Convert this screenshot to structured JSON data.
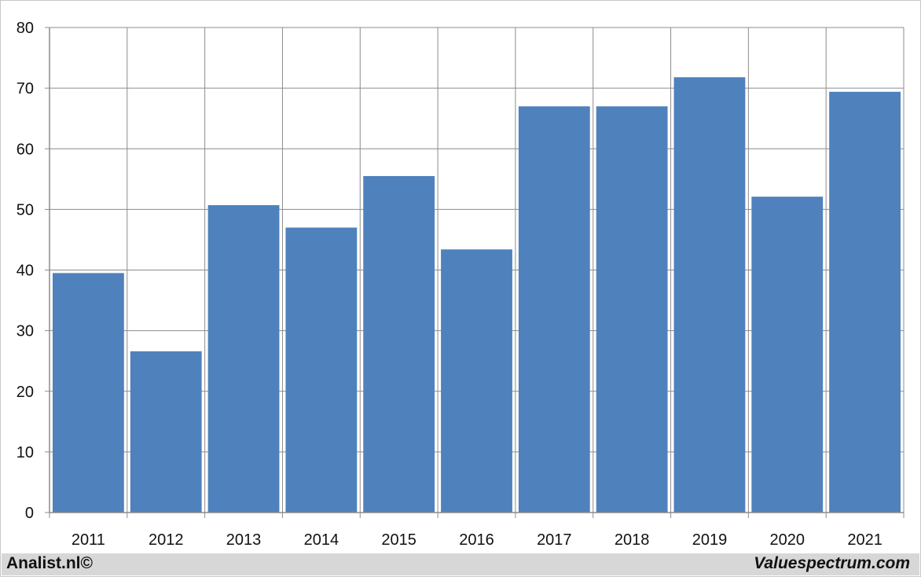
{
  "chart_data": {
    "type": "bar",
    "categories": [
      "2011",
      "2012",
      "2013",
      "2014",
      "2015",
      "2016",
      "2017",
      "2018",
      "2019",
      "2020",
      "2021"
    ],
    "values": [
      39.5,
      26.6,
      50.7,
      47.0,
      55.5,
      43.4,
      67.0,
      67.0,
      71.8,
      52.1,
      69.4
    ],
    "ylim": [
      0,
      80
    ],
    "yticks": [
      0,
      10,
      20,
      30,
      40,
      50,
      60,
      70,
      80
    ],
    "grid": true,
    "bar_color": "#4f81bd",
    "title": "",
    "xlabel": "",
    "ylabel": ""
  },
  "footer": {
    "left_text": "Analist.nl©",
    "right_text": "Valuespectrum.com"
  },
  "colors": {
    "footer_bg": "#d7d7d7",
    "grid": "#8c8c8c"
  }
}
